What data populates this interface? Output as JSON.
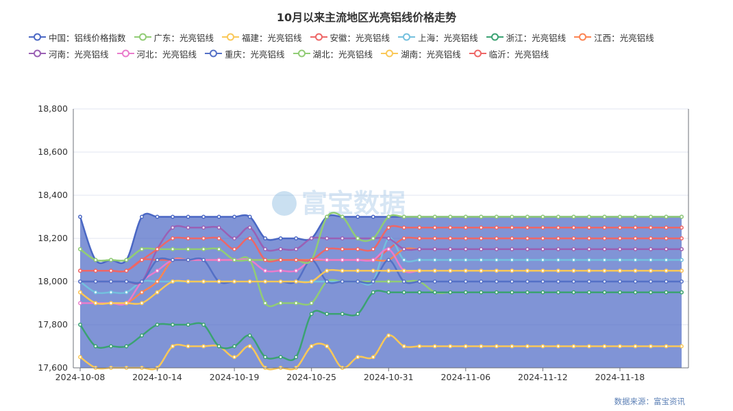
{
  "chart_data": {
    "type": "line",
    "title": "10月以来主流地区光亮铝线价格走势",
    "source": "数据来源：富宝资讯",
    "watermark": "富宝数据",
    "ylim": [
      17600,
      18800
    ],
    "yticks": [
      "17,600",
      "17,800",
      "18,000",
      "18,200",
      "18,400",
      "18,600",
      "18,800"
    ],
    "xtick_labels": [
      "2024-10-08",
      "2024-10-14",
      "2024-10-19",
      "2024-10-25",
      "2024-10-31",
      "2024-11-06",
      "2024-11-12",
      "2024-11-18"
    ],
    "xtick_index": [
      0,
      5,
      10,
      15,
      20,
      25,
      30,
      35
    ],
    "num_points": 40,
    "series": [
      {
        "name": "中国：铝线价格指数",
        "color": "#4a67c4",
        "area": true,
        "values": [
          18300,
          18100,
          18100,
          18100,
          18300,
          18300,
          18300,
          18300,
          18300,
          18300,
          18300,
          18300,
          18200,
          18200,
          18200,
          18200,
          18300,
          18300,
          18300,
          18300,
          18300,
          18300,
          18300,
          18300,
          18300,
          18300,
          18300,
          18300,
          18300,
          18300,
          18300,
          18300,
          18300,
          18300,
          18300,
          18300,
          18300,
          18300,
          18300,
          18300
        ]
      },
      {
        "name": "广东：光亮铝线",
        "color": "#91cc75",
        "values": [
          18150,
          18100,
          18100,
          18100,
          18150,
          18150,
          18150,
          18150,
          18150,
          18150,
          18100,
          18100,
          17900,
          17900,
          17900,
          17900,
          18000,
          18000,
          18000,
          18000,
          18000,
          18000,
          18000,
          17950,
          17950,
          17950,
          17950,
          17950,
          17950,
          17950,
          17950,
          17950,
          17950,
          17950,
          17950,
          17950,
          17950,
          17950,
          17950,
          17950
        ]
      },
      {
        "name": "福建：光亮铝线",
        "color": "#fac858",
        "values": [
          17650,
          17600,
          17600,
          17600,
          17600,
          17600,
          17700,
          17700,
          17700,
          17700,
          17650,
          17700,
          17600,
          17600,
          17600,
          17700,
          17700,
          17600,
          17650,
          17650,
          17750,
          17700,
          17700,
          17700,
          17700,
          17700,
          17700,
          17700,
          17700,
          17700,
          17700,
          17700,
          17700,
          17700,
          17700,
          17700,
          17700,
          17700,
          17700,
          17700
        ]
      },
      {
        "name": "安徽：光亮铝线",
        "color": "#ee6666",
        "values": [
          18050,
          18050,
          18050,
          18050,
          18100,
          18100,
          18100,
          18100,
          18100,
          18100,
          18100,
          18100,
          18100,
          18100,
          18100,
          18100,
          18100,
          18100,
          18100,
          18100,
          18150,
          18200,
          18200,
          18200,
          18200,
          18200,
          18200,
          18200,
          18200,
          18200,
          18200,
          18200,
          18200,
          18200,
          18200,
          18200,
          18200,
          18200,
          18200,
          18200
        ]
      },
      {
        "name": "上海：光亮铝线",
        "color": "#73c0de",
        "values": [
          18000,
          17950,
          17950,
          17950,
          18000,
          18000,
          18000,
          18000,
          18000,
          18000,
          18000,
          18000,
          18000,
          18000,
          18000,
          18000,
          18000,
          18000,
          18000,
          18000,
          18200,
          18100,
          18100,
          18100,
          18100,
          18100,
          18100,
          18100,
          18100,
          18100,
          18100,
          18100,
          18100,
          18100,
          18100,
          18100,
          18100,
          18100,
          18100,
          18100
        ]
      },
      {
        "name": "浙江：光亮铝线",
        "color": "#3ba272",
        "values": [
          17800,
          17700,
          17700,
          17700,
          17750,
          17800,
          17800,
          17800,
          17800,
          17700,
          17700,
          17750,
          17650,
          17650,
          17650,
          17850,
          17850,
          17850,
          17850,
          17950,
          17950,
          17950,
          17950,
          17950,
          17950,
          17950,
          17950,
          17950,
          17950,
          17950,
          17950,
          17950,
          17950,
          17950,
          17950,
          17950,
          17950,
          17950,
          17950,
          17950
        ]
      },
      {
        "name": "江西：光亮铝线",
        "color": "#fc8452",
        "values": [
          17950,
          17900,
          17900,
          17900,
          17950,
          18000,
          18100,
          18100,
          18100,
          18100,
          18100,
          18100,
          18100,
          18100,
          18100,
          18100,
          18100,
          18100,
          18100,
          18100,
          18100,
          18150,
          18150,
          18150,
          18150,
          18150,
          18150,
          18150,
          18150,
          18150,
          18150,
          18150,
          18150,
          18150,
          18150,
          18150,
          18150,
          18150,
          18150,
          18150
        ]
      },
      {
        "name": "河南：光亮铝线",
        "color": "#9a60b4",
        "values": [
          18000,
          18000,
          18000,
          18000,
          18000,
          18150,
          18250,
          18250,
          18250,
          18250,
          18200,
          18250,
          18150,
          18150,
          18150,
          18200,
          18200,
          18200,
          18200,
          18200,
          18200,
          18150,
          18150,
          18150,
          18150,
          18150,
          18150,
          18150,
          18150,
          18150,
          18150,
          18150,
          18150,
          18150,
          18150,
          18150,
          18150,
          18150,
          18150,
          18150
        ]
      },
      {
        "name": "河北：光亮铝线",
        "color": "#ea7ccc",
        "values": [
          17900,
          17900,
          17900,
          17900,
          18000,
          18050,
          18100,
          18100,
          18100,
          18100,
          18100,
          18100,
          18050,
          18050,
          18050,
          18100,
          18100,
          18100,
          18100,
          18100,
          18150,
          18050,
          18050,
          18050,
          18050,
          18050,
          18050,
          18050,
          18050,
          18050,
          18050,
          18050,
          18050,
          18050,
          18050,
          18050,
          18050,
          18050,
          18050,
          18050
        ]
      },
      {
        "name": "重庆：光亮铝线",
        "color": "#5470c6",
        "values": [
          18000,
          18000,
          18000,
          18000,
          18000,
          18100,
          18100,
          18100,
          18100,
          18000,
          18000,
          18000,
          18000,
          18000,
          18000,
          18100,
          18000,
          18000,
          18000,
          18000,
          18100,
          18000,
          18000,
          18000,
          18000,
          18000,
          18000,
          18000,
          18000,
          18000,
          18000,
          18000,
          18000,
          18000,
          18000,
          18000,
          18000,
          18000,
          18000,
          18000
        ]
      },
      {
        "name": "湖北：光亮铝线",
        "color": "#91cc75",
        "values": [
          18150,
          18100,
          18100,
          18100,
          18150,
          18150,
          18150,
          18150,
          18150,
          18150,
          18100,
          18100,
          18100,
          18100,
          18100,
          18100,
          18300,
          18300,
          18200,
          18200,
          18300,
          18300,
          18300,
          18300,
          18300,
          18300,
          18300,
          18300,
          18300,
          18300,
          18300,
          18300,
          18300,
          18300,
          18300,
          18300,
          18300,
          18300,
          18300,
          18300
        ]
      },
      {
        "name": "湖南：光亮铝线",
        "color": "#fac858",
        "values": [
          17950,
          17900,
          17900,
          17900,
          17900,
          17950,
          18000,
          18000,
          18000,
          18000,
          18000,
          18000,
          18000,
          18000,
          18000,
          18000,
          18050,
          18050,
          18050,
          18050,
          18050,
          18050,
          18050,
          18050,
          18050,
          18050,
          18050,
          18050,
          18050,
          18050,
          18050,
          18050,
          18050,
          18050,
          18050,
          18050,
          18050,
          18050,
          18050,
          18050
        ]
      },
      {
        "name": "临沂：光亮铝线",
        "color": "#ee6666",
        "values": [
          18050,
          18050,
          18050,
          18050,
          18100,
          18150,
          18200,
          18200,
          18200,
          18200,
          18150,
          18200,
          18100,
          18100,
          18100,
          18100,
          18150,
          18150,
          18150,
          18150,
          18250,
          18250,
          18250,
          18250,
          18250,
          18250,
          18250,
          18250,
          18250,
          18250,
          18250,
          18250,
          18250,
          18250,
          18250,
          18250,
          18250,
          18250,
          18250,
          18250
        ]
      }
    ]
  }
}
